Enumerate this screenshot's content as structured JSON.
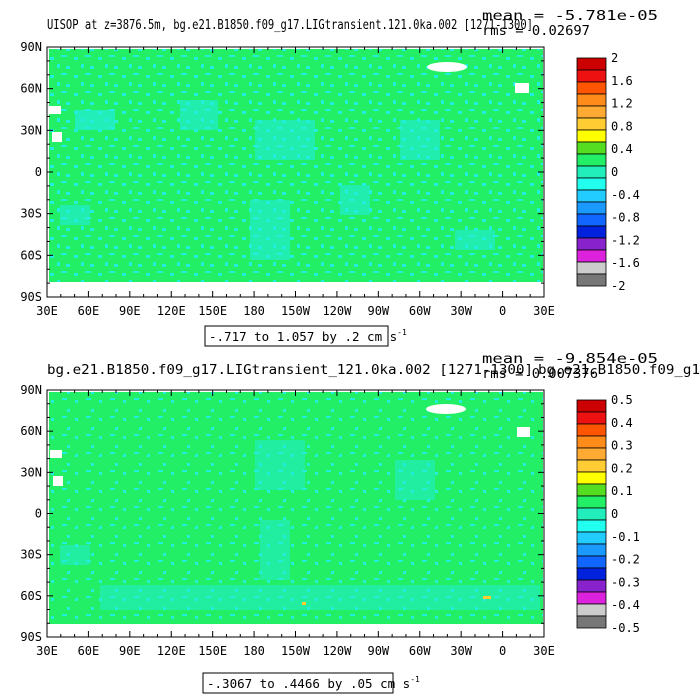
{
  "chart_data": [
    {
      "type": "heatmap",
      "title": "UISOP at z=3876.5m, bg.e21.B1850.f09_g17.LIGtransient.121.0ka.002 [1271-1300]",
      "stats": {
        "mean": "mean = -5.781e-05",
        "rms": "rms = 0.02697"
      },
      "xticks": [
        "30E",
        "60E",
        "90E",
        "120E",
        "150E",
        "180",
        "150W",
        "120W",
        "90W",
        "60W",
        "30W",
        "0",
        "30E"
      ],
      "yticks": [
        "90N",
        "60N",
        "30N",
        "0",
        "30S",
        "60S",
        "90S"
      ],
      "xlim": [
        30,
        390
      ],
      "ylim": [
        -90,
        90
      ],
      "range_label": "-.717 to 1.057 by .2 cm s",
      "units_sup": "-1",
      "colorbar": {
        "labels": [
          "2",
          "1.6",
          "1.2",
          "0.8",
          "0.4",
          "0",
          "-0.4",
          "-0.8",
          "-1.2",
          "-1.6",
          "-2"
        ],
        "colors": [
          "#cc0000",
          "#ee1111",
          "#ff5500",
          "#ff8c1a",
          "#ffaa33",
          "#ffcc33",
          "#ffff00",
          "#55dd22",
          "#22ee66",
          "#22eebb",
          "#22ffee",
          "#22ccff",
          "#1a99ff",
          "#1166ff",
          "#0022dd",
          "#8822cc",
          "#dd22dd",
          "#cccccc",
          "#777777"
        ]
      }
    },
    {
      "type": "heatmap",
      "title": "bg.e21.B1850.f09_g17.LIGtransient_121.0ka.002 [1271-1300]",
      "title_overlap": "bg.e21.B1850.f09_g1",
      "stats": {
        "mean": "mean = -9.854e-05",
        "rms": "rms = 0.007376"
      },
      "xticks": [
        "30E",
        "60E",
        "90E",
        "120E",
        "150E",
        "180",
        "150W",
        "120W",
        "90W",
        "60W",
        "30W",
        "0",
        "30E"
      ],
      "yticks": [
        "90N",
        "60N",
        "30N",
        "0",
        "30S",
        "60S",
        "90S"
      ],
      "xlim": [
        30,
        390
      ],
      "ylim": [
        -90,
        90
      ],
      "range_label": "-.3067 to .4466 by .05 cm s",
      "units_sup": "-1",
      "colorbar": {
        "labels": [
          "0.5",
          "0.4",
          "0.3",
          "0.2",
          "0.1",
          "0",
          "-0.1",
          "-0.2",
          "-0.3",
          "-0.4",
          "-0.5"
        ],
        "colors": [
          "#cc0000",
          "#ee1111",
          "#ff5500",
          "#ff8c1a",
          "#ffaa33",
          "#ffcc33",
          "#ffff00",
          "#55dd22",
          "#22ee66",
          "#22eebb",
          "#22ffee",
          "#22ccff",
          "#1a99ff",
          "#1166ff",
          "#0022dd",
          "#8822cc",
          "#dd22dd",
          "#cccccc",
          "#777777"
        ]
      }
    }
  ]
}
